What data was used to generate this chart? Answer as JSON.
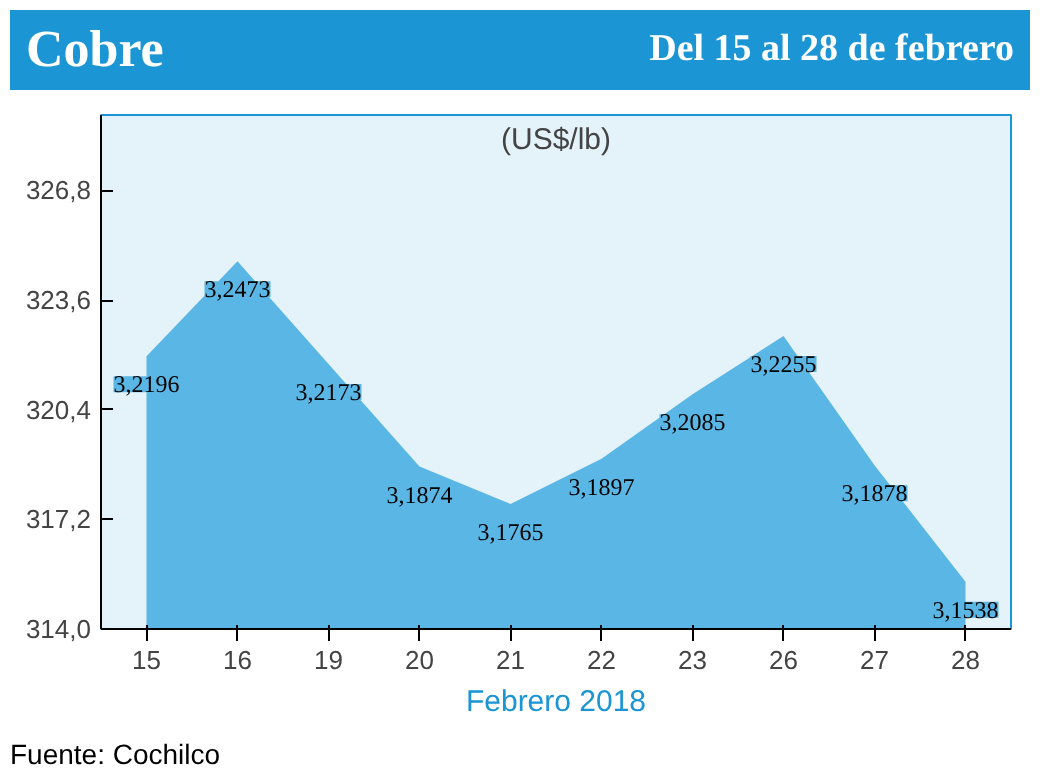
{
  "chart_data": {
    "type": "area",
    "title": "Cobre",
    "subtitle": "Del 15 al 28 de febrero",
    "ylabel": "(US$/lb)",
    "xlabel": "Febrero 2018",
    "categories": [
      "15",
      "16",
      "19",
      "20",
      "21",
      "22",
      "23",
      "26",
      "27",
      "28"
    ],
    "values": [
      321.96,
      324.73,
      321.73,
      318.74,
      317.65,
      318.97,
      320.85,
      322.55,
      318.78,
      315.38
    ],
    "value_labels": [
      "3,2196",
      "3,2473",
      "3,2173",
      "3,1874",
      "3,1765",
      "3,1897",
      "3,2085",
      "3,2255",
      "3,1878",
      "3,1538"
    ],
    "color": "#5ab6e4",
    "ylim": [
      314.0,
      329.0
    ],
    "yticks": [
      {
        "value": 314.0,
        "label": "314,0"
      },
      {
        "value": 317.2,
        "label": "317,2"
      },
      {
        "value": 320.4,
        "label": "320,4"
      },
      {
        "value": 323.6,
        "label": "323,6"
      },
      {
        "value": 326.8,
        "label": "326,8"
      }
    ],
    "annotations": [
      "Fuente: Cochilco"
    ]
  }
}
